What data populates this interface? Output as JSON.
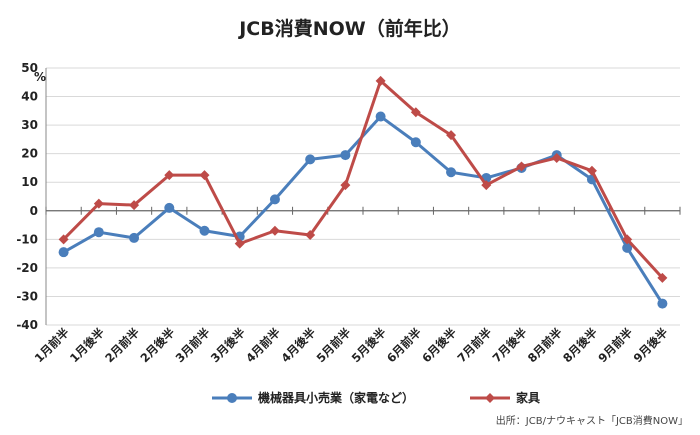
{
  "chart_data": {
    "type": "line",
    "title": "JCB消費NOW（前年比）",
    "unit": "%",
    "source": "出所：JCB/ナウキャスト「JCB消費NOW」",
    "ylim": [
      -40,
      50
    ],
    "yticks": [
      -40,
      -30,
      -20,
      -10,
      0,
      10,
      20,
      30,
      40,
      50
    ],
    "grid": "horizontal",
    "legend": "bottom",
    "categories": [
      "1月前半",
      "1月後半",
      "2月前半",
      "2月後半",
      "3月前半",
      "3月後半",
      "4月前半",
      "4月後半",
      "5月前半",
      "5月後半",
      "6月前半",
      "6月後半",
      "7月前半",
      "7月後半",
      "8月前半",
      "8月後半",
      "9月前半",
      "9月後半"
    ],
    "series": [
      {
        "name": "機械器具小売業（家電など）",
        "color": "#4a7ebb",
        "marker": "circle",
        "values": [
          -14.5,
          -7.5,
          -9.5,
          1,
          -7,
          -9,
          4,
          18,
          19.5,
          33,
          24,
          13.5,
          11.5,
          15,
          19.5,
          11,
          -13,
          -32.5
        ]
      },
      {
        "name": "家具",
        "color": "#be4b48",
        "marker": "diamond",
        "values": [
          -10,
          2.5,
          2,
          12.5,
          12.5,
          -11.5,
          -7,
          -8.5,
          9,
          45.5,
          34.5,
          26.5,
          9,
          15.5,
          18.5,
          14,
          -10,
          -23.5
        ]
      }
    ]
  }
}
